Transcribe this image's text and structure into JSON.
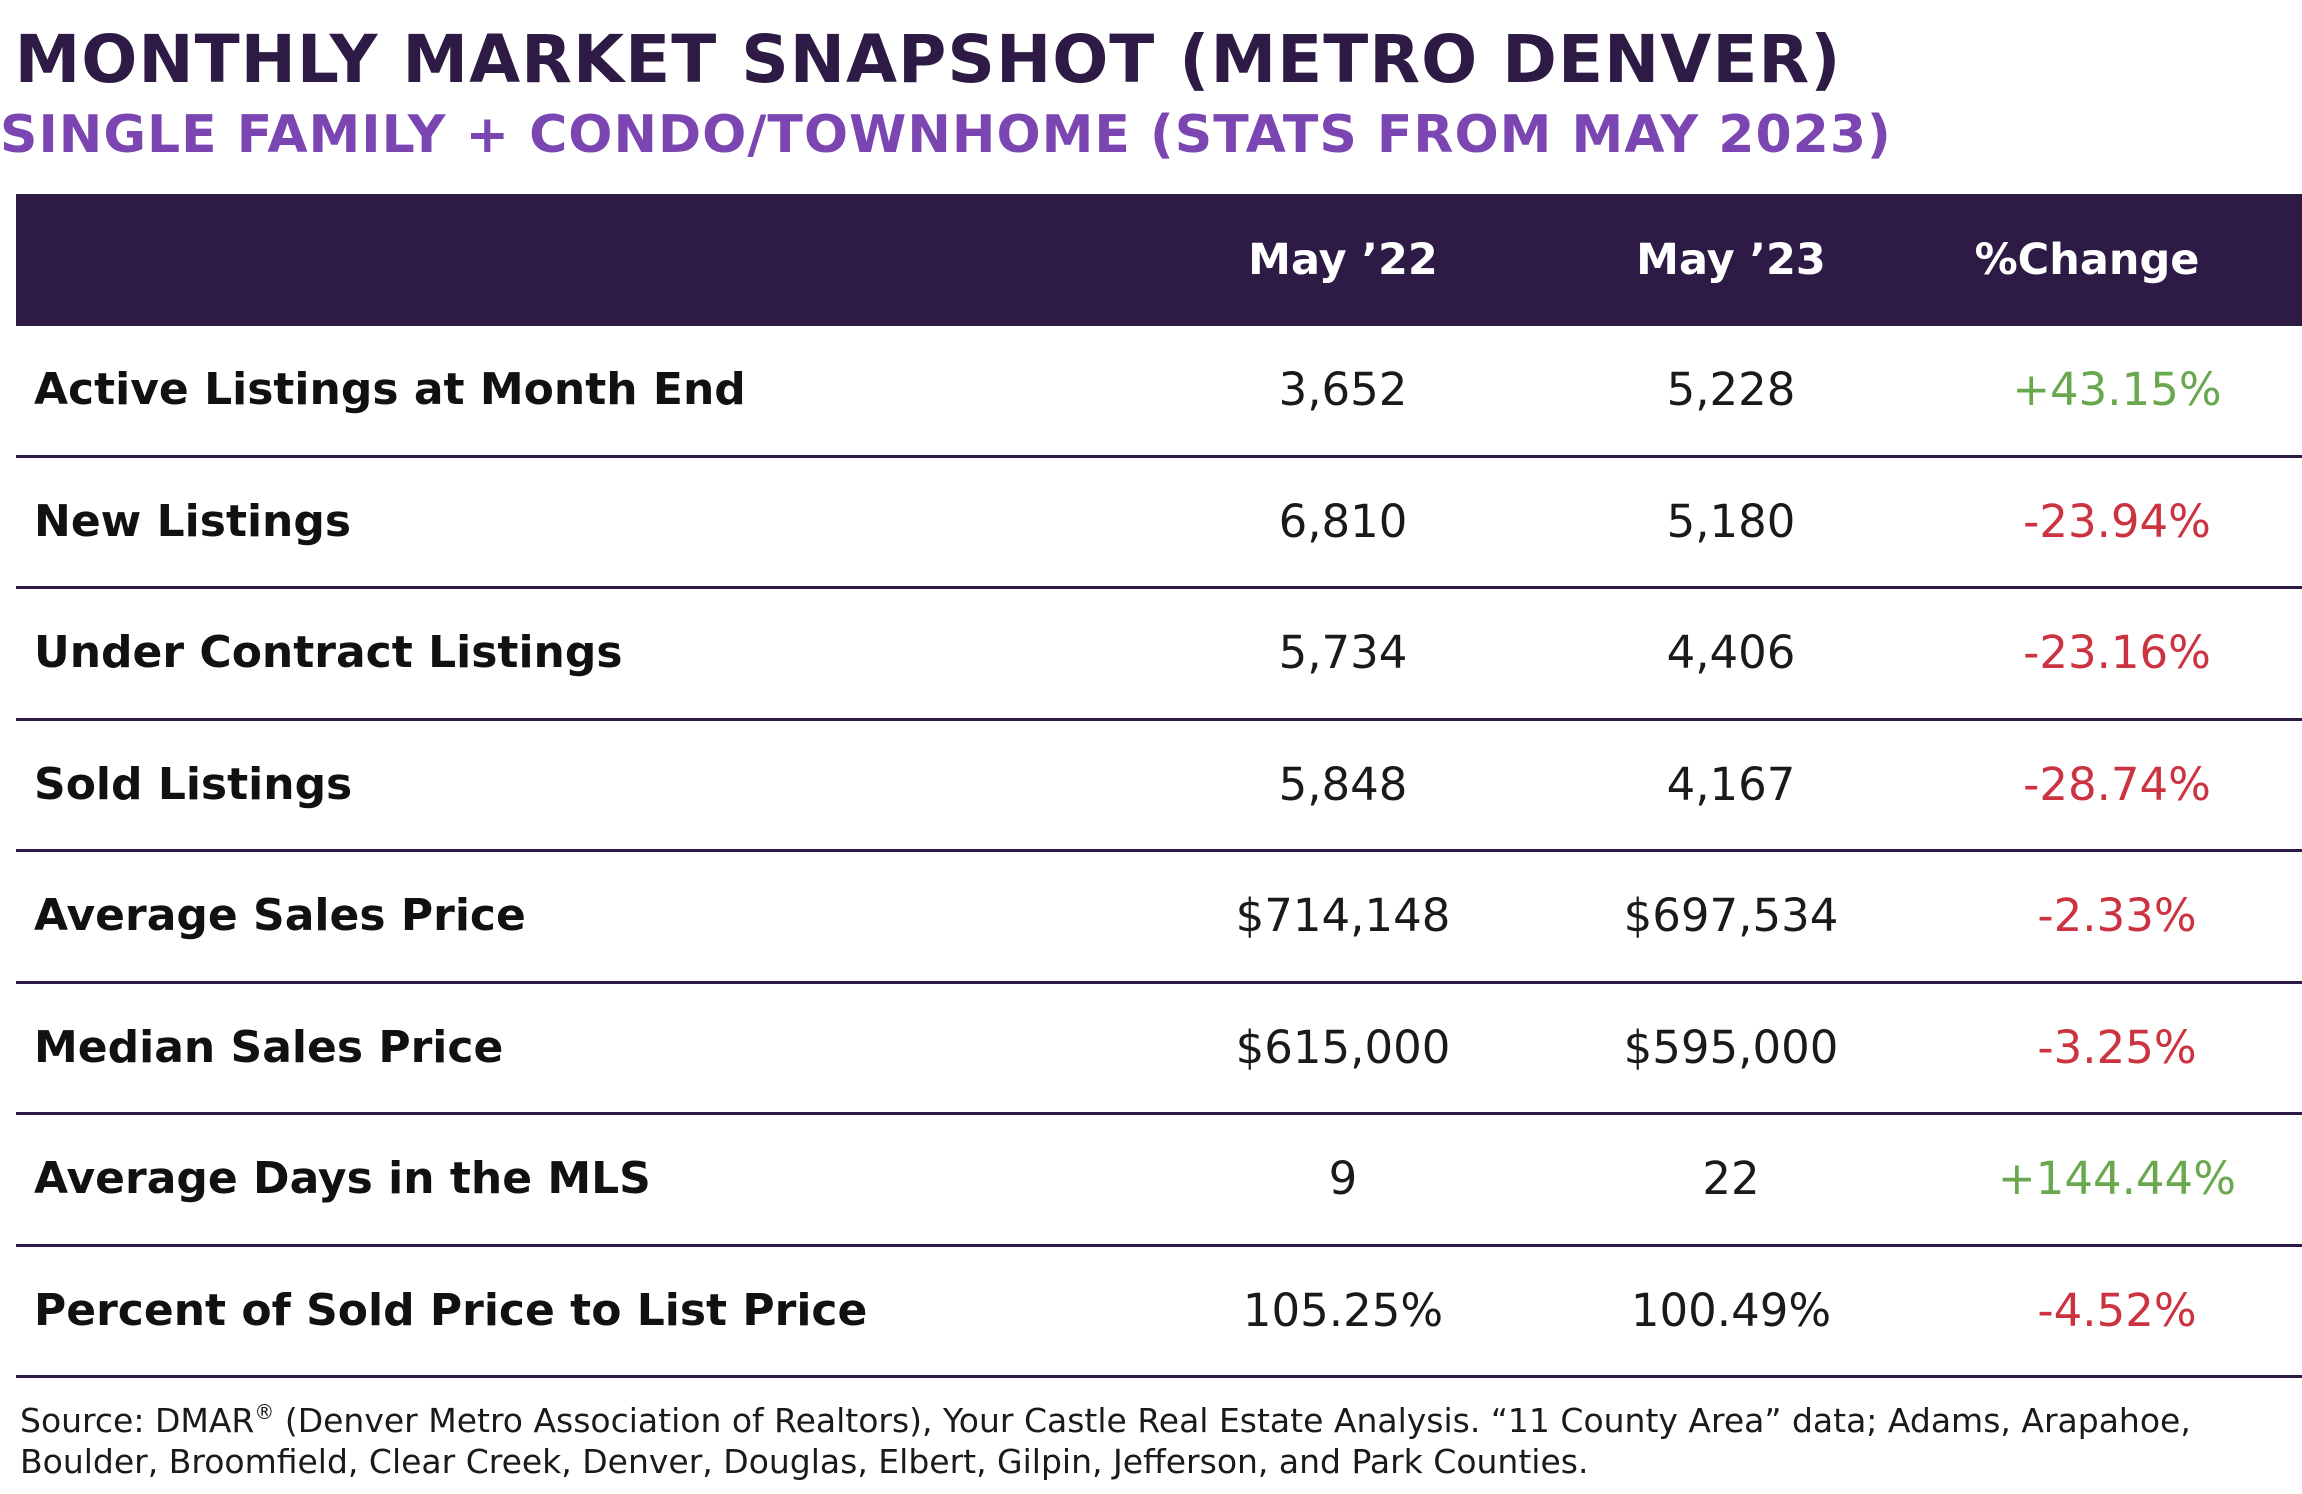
{
  "title": "MONTHLY MARKET SNAPSHOT (METRO DENVER)",
  "subtitle": "SINGLE FAMILY + CONDO/TOWNHOME (STATS FROM MAY 2023)",
  "table": {
    "headers": [
      "",
      "May ’22",
      "May ’23",
      "%Change"
    ],
    "rows": [
      {
        "label": "Active Listings at Month End",
        "may22": "3,652",
        "may23": "5,228",
        "change": "+43.15%",
        "trend": "up"
      },
      {
        "label": "New Listings",
        "may22": "6,810",
        "may23": "5,180",
        "change": "-23.94%",
        "trend": "down"
      },
      {
        "label": "Under Contract Listings",
        "may22": "5,734",
        "may23": "4,406",
        "change": "-23.16%",
        "trend": "down"
      },
      {
        "label": "Sold Listings",
        "may22": "5,848",
        "may23": "4,167",
        "change": "-28.74%",
        "trend": "down"
      },
      {
        "label": "Average Sales Price",
        "may22": "$714,148",
        "may23": "$697,534",
        "change": "-2.33%",
        "trend": "down"
      },
      {
        "label": "Median Sales Price",
        "may22": "$615,000",
        "may23": "$595,000",
        "change": "-3.25%",
        "trend": "down"
      },
      {
        "label": "Average Days in the MLS",
        "may22": "9",
        "may23": "22",
        "change": "+144.44%",
        "trend": "up"
      },
      {
        "label": "Percent of Sold Price to List Price",
        "may22": "105.25%",
        "may23": "100.49%",
        "change": "-4.52%",
        "trend": "down"
      }
    ]
  },
  "source": {
    "prefix": "Source: DMAR",
    "registered_mark": "®",
    "line1_rest": " (Denver Metro Association of Realtors), Your Castle Real Estate Analysis. “11 County Area” data; Adams, Arapahoe,",
    "line2": "Boulder, Broomfield, Clear Creek, Denver, Douglas, Elbert, Gilpin, Jefferson, and Park Counties."
  },
  "colors": {
    "header_bg": "#2d1b45",
    "title": "#2d1b45",
    "subtitle": "#7b46b2",
    "positive": "#6aa84f",
    "negative": "#cc3340"
  }
}
